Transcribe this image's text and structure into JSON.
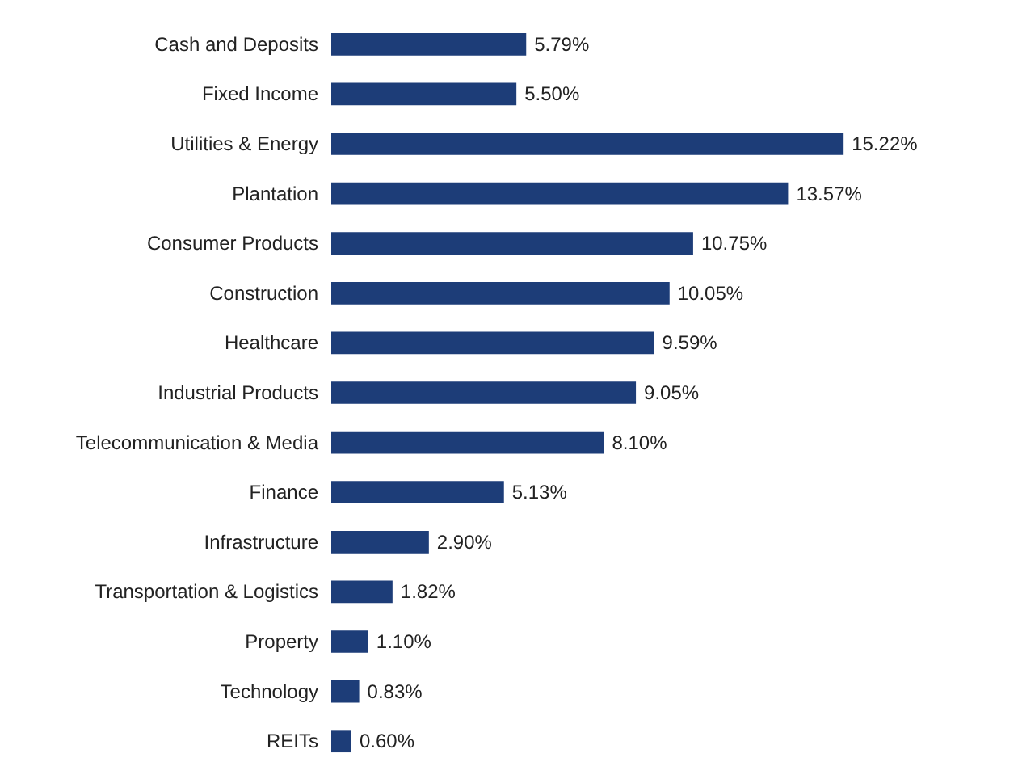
{
  "chart_data": {
    "type": "bar",
    "orientation": "horizontal",
    "categories": [
      "Cash and Deposits",
      "Fixed Income",
      "Utilities & Energy",
      "Plantation",
      "Consumer Products",
      "Construction",
      "Healthcare",
      "Industrial Products",
      "Telecommunication & Media",
      "Finance",
      "Infrastructure",
      "Transportation & Logistics",
      "Property",
      "Technology",
      "REITs"
    ],
    "values": [
      5.79,
      5.5,
      15.22,
      13.57,
      10.75,
      10.05,
      9.59,
      9.05,
      8.1,
      5.13,
      2.9,
      1.82,
      1.1,
      0.83,
      0.6
    ],
    "value_labels": [
      "5.79%",
      "5.50%",
      "15.22%",
      "13.57%",
      "10.75%",
      "10.05%",
      "9.59%",
      "9.05%",
      "8.10%",
      "5.13%",
      "2.90%",
      "1.82%",
      "1.10%",
      "0.83%",
      "0.60%"
    ],
    "color": "#1d3d78"
  }
}
